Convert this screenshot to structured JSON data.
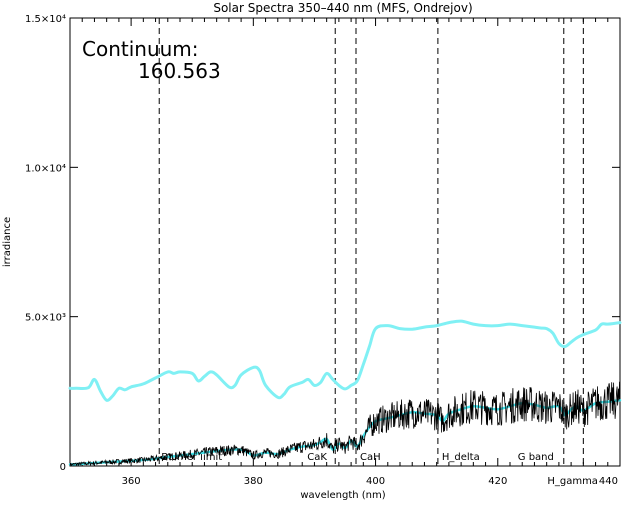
{
  "chart_data": {
    "type": "line",
    "title": "Solar Spectra 350–440 nm (MFS, Ondrejov)",
    "xlabel": "wavelength (nm)",
    "ylabel": "irradiance",
    "xlim": [
      350,
      440
    ],
    "ylim": [
      0,
      15000
    ],
    "x_ticks": [
      {
        "value": 360,
        "label": "360"
      },
      {
        "value": 380,
        "label": "380"
      },
      {
        "value": 400,
        "label": "400"
      },
      {
        "value": 420,
        "label": "420"
      },
      {
        "value": 440,
        "label": "440"
      }
    ],
    "y_ticks": [
      {
        "value": 0,
        "label": "0"
      },
      {
        "value": 5000,
        "label": "5.0×10³"
      },
      {
        "value": 10000,
        "label": "1.0×10⁴"
      },
      {
        "value": 15000,
        "label": "1.5×10⁴"
      }
    ],
    "annotation": {
      "label": "Continuum:",
      "value": "160.563"
    },
    "reference_lines": [
      {
        "x": 364.6,
        "label": "Balmer limit"
      },
      {
        "x": 393.4,
        "label": "CaK"
      },
      {
        "x": 396.8,
        "label": "CaH"
      },
      {
        "x": 410.2,
        "label": "H_delta"
      },
      {
        "x": 430.8,
        "label": "G band"
      },
      {
        "x": 434.0,
        "label": "H_gamma"
      }
    ],
    "series": [
      {
        "color": "#80f0f4",
        "x": [
          350,
          351,
          353,
          354,
          355,
          356,
          357,
          358,
          359,
          360,
          362,
          364,
          366,
          367,
          368,
          370,
          371,
          372,
          373,
          374,
          376,
          377,
          378,
          380,
          381,
          382,
          384,
          385,
          386,
          388,
          389,
          390,
          391,
          392,
          393,
          394,
          395,
          396,
          397,
          398,
          399,
          400,
          402,
          404,
          406,
          408,
          410,
          412,
          414,
          416,
          418,
          420,
          422,
          424,
          426,
          427,
          428,
          429,
          430,
          431,
          432,
          433,
          434,
          436,
          437,
          438,
          440
        ],
        "values": [
          2600,
          2600,
          2620,
          2900,
          2500,
          2200,
          2350,
          2600,
          2550,
          2650,
          2750,
          2950,
          3150,
          3100,
          3150,
          3100,
          2850,
          3000,
          3150,
          3050,
          2650,
          2700,
          3050,
          3300,
          3200,
          2700,
          2300,
          2400,
          2650,
          2800,
          2900,
          2700,
          2800,
          3100,
          2900,
          2700,
          2580,
          2700,
          2850,
          3400,
          4000,
          4600,
          4700,
          4600,
          4580,
          4650,
          4700,
          4800,
          4850,
          4750,
          4700,
          4700,
          4750,
          4700,
          4650,
          4620,
          4600,
          4450,
          4100,
          4000,
          4150,
          4300,
          4400,
          4550,
          4750,
          4750,
          4800
        ]
      },
      {
        "color": "#40e0e8",
        "x": [
          350,
          354,
          358,
          362,
          366,
          370,
          374,
          378,
          380,
          382,
          384,
          386,
          388,
          390,
          391,
          392,
          393,
          394,
          395,
          396,
          397,
          398,
          399,
          400,
          402,
          404,
          406,
          408,
          410,
          411,
          412,
          414,
          416,
          418,
          420,
          422,
          424,
          426,
          428,
          430,
          431,
          432,
          433,
          434,
          436,
          438,
          440
        ],
        "values": [
          50,
          100,
          150,
          200,
          300,
          400,
          500,
          550,
          350,
          450,
          400,
          550,
          650,
          700,
          800,
          900,
          550,
          750,
          600,
          850,
          650,
          1000,
          1300,
          1500,
          1600,
          1700,
          1800,
          1750,
          1700,
          1500,
          1750,
          1900,
          2000,
          1950,
          1900,
          2000,
          2100,
          2050,
          1950,
          2000,
          1700,
          1900,
          2000,
          1850,
          2100,
          2150,
          2200
        ]
      }
    ]
  }
}
